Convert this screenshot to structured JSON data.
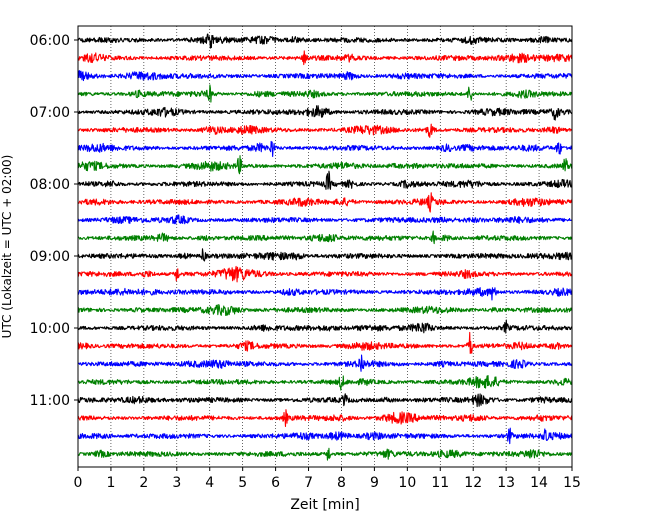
{
  "chart_data": {
    "type": "line",
    "title": "",
    "xlabel": "Zeit  [min]",
    "ylabel": "UTC (Lokalzeit = UTC + 02:00)",
    "xlim": [
      0,
      15
    ],
    "x_ticks": [
      "0",
      "1",
      "2",
      "3",
      "4",
      "5",
      "6",
      "7",
      "8",
      "9",
      "10",
      "11",
      "12",
      "13",
      "14",
      "15"
    ],
    "y_ticks": [
      {
        "label": "06:00",
        "trace_index": 0
      },
      {
        "label": "07:00",
        "trace_index": 4
      },
      {
        "label": "08:00",
        "trace_index": 8
      },
      {
        "label": "09:00",
        "trace_index": 12
      },
      {
        "label": "10:00",
        "trace_index": 16
      },
      {
        "label": "11:00",
        "trace_index": 20
      }
    ],
    "grid": "vertical-dotted",
    "trace_colors": [
      "#000000",
      "#ff0000",
      "#0000ff",
      "#008000"
    ],
    "trace_count": 24,
    "minutes_per_trace": 15,
    "events": [
      {
        "trace": 0,
        "x": 4.0,
        "amp": 1.6
      },
      {
        "trace": 1,
        "x": 6.9,
        "amp": 2.0
      },
      {
        "trace": 3,
        "x": 4.0,
        "amp": 1.8
      },
      {
        "trace": 3,
        "x": 11.9,
        "amp": 2.2
      },
      {
        "trace": 4,
        "x": 14.5,
        "amp": 1.4
      },
      {
        "trace": 5,
        "x": 10.7,
        "amp": 1.4
      },
      {
        "trace": 6,
        "x": 5.9,
        "amp": 2.0
      },
      {
        "trace": 6,
        "x": 14.6,
        "amp": 1.8
      },
      {
        "trace": 7,
        "x": 4.9,
        "amp": 2.0
      },
      {
        "trace": 7,
        "x": 14.8,
        "amp": 1.8
      },
      {
        "trace": 8,
        "x": 7.6,
        "amp": 2.6
      },
      {
        "trace": 9,
        "x": 10.7,
        "amp": 1.5
      },
      {
        "trace": 11,
        "x": 10.8,
        "amp": 1.3
      },
      {
        "trace": 12,
        "x": 3.8,
        "amp": 1.6
      },
      {
        "trace": 13,
        "x": 3.0,
        "amp": 1.6
      },
      {
        "trace": 14,
        "x": 12.6,
        "amp": 1.5
      },
      {
        "trace": 16,
        "x": 13.0,
        "amp": 1.3
      },
      {
        "trace": 17,
        "x": 11.9,
        "amp": 3.2
      },
      {
        "trace": 18,
        "x": 8.6,
        "amp": 2.0
      },
      {
        "trace": 19,
        "x": 8.0,
        "amp": 1.8
      },
      {
        "trace": 20,
        "x": 8.1,
        "amp": 1.5
      },
      {
        "trace": 21,
        "x": 6.3,
        "amp": 1.5
      },
      {
        "trace": 22,
        "x": 13.1,
        "amp": 1.6
      },
      {
        "trace": 22,
        "x": 14.2,
        "amp": 1.9
      },
      {
        "trace": 23,
        "x": 7.6,
        "amp": 1.6
      }
    ]
  }
}
